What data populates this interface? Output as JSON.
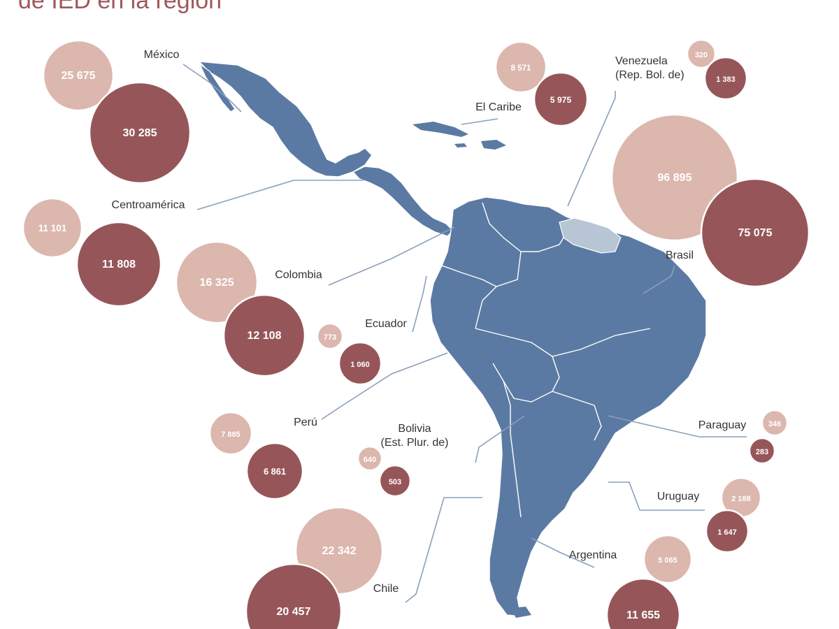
{
  "title": "de IED en la región",
  "colors": {
    "light_bubble": "#dcb7ae",
    "dark_bubble": "#965659",
    "land": "#5b7aa3",
    "guianas": "#b7c5d4",
    "label": "#333333",
    "leader": "#8aa0bb"
  },
  "countries": [
    {
      "id": "mexico",
      "label": "México",
      "light": "25 675",
      "dark": "30 285"
    },
    {
      "id": "caribe",
      "label": "El Caribe",
      "light": "8 571",
      "dark": "5 975"
    },
    {
      "id": "venezuela",
      "label": "Venezuela\n(Rep. Bol. de)",
      "light": "320",
      "dark": "1 383"
    },
    {
      "id": "centroamerica",
      "label": "Centroamérica",
      "light": "11 101",
      "dark": "11 808"
    },
    {
      "id": "brasil",
      "label": "Brasil",
      "light": "96 895",
      "dark": "75 075"
    },
    {
      "id": "colombia",
      "label": "Colombia",
      "light": "16 325",
      "dark": "12 108"
    },
    {
      "id": "ecuador",
      "label": "Ecuador",
      "light": "773",
      "dark": "1 060"
    },
    {
      "id": "peru",
      "label": "Perú",
      "light": "7 885",
      "dark": "6 861"
    },
    {
      "id": "bolivia",
      "label": "Bolivia\n(Est. Plur. de)",
      "light": "640",
      "dark": "503"
    },
    {
      "id": "paraguay",
      "label": "Paraguay",
      "light": "346",
      "dark": "283"
    },
    {
      "id": "uruguay",
      "label": "Uruguay",
      "light": "2 188",
      "dark": "1 647"
    },
    {
      "id": "chile",
      "label": "Chile",
      "light": "22 342",
      "dark": "20 457"
    },
    {
      "id": "argentina",
      "label": "Argentina",
      "light": "5 065",
      "dark": "11 655"
    }
  ]
}
